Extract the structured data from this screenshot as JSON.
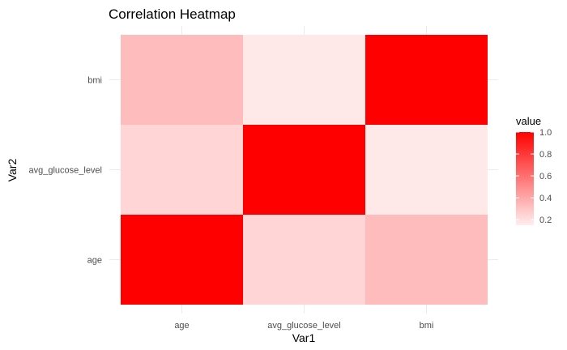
{
  "chart_data": {
    "type": "heatmap",
    "title": "Correlation Heatmap",
    "xlabel": "Var1",
    "ylabel": "Var2",
    "x_categories": [
      "age",
      "avg_glucose_level",
      "bmi"
    ],
    "y_categories": [
      "age",
      "avg_glucose_level",
      "bmi"
    ],
    "values": [
      [
        1.0,
        0.24,
        0.33
      ],
      [
        0.24,
        1.0,
        0.17
      ],
      [
        0.33,
        0.17,
        1.0
      ]
    ],
    "color_low": "#ffeeee",
    "color_high": "#ff0000",
    "color_range": [
      0.15,
      1.0
    ],
    "legend": {
      "title": "value",
      "ticks": [
        1.0,
        0.8,
        0.6,
        0.4,
        0.2
      ],
      "tick_labels": [
        "1.0",
        "0.8",
        "0.6",
        "0.4",
        "0.2"
      ],
      "position": "right"
    },
    "grid": true
  }
}
